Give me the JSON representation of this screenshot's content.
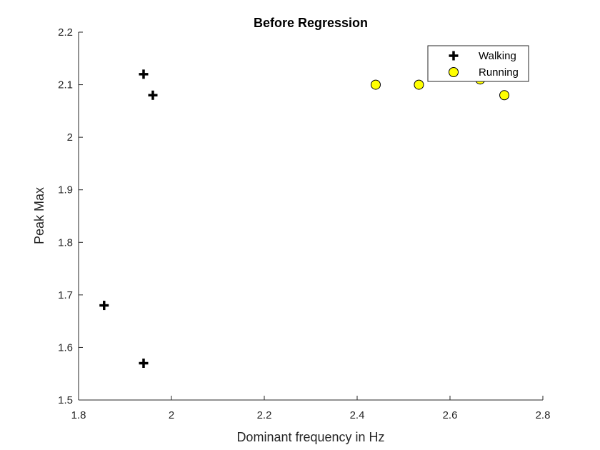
{
  "chart_data": {
    "type": "scatter",
    "title": "Before Regression",
    "xlabel": "Dominant frequency in Hz",
    "ylabel": "Peak Max",
    "xlim": [
      1.8,
      2.8
    ],
    "ylim": [
      1.5,
      2.2
    ],
    "xticks": [
      1.8,
      2,
      2.2,
      2.4,
      2.6,
      2.8
    ],
    "xtick_labels": [
      "1.8",
      "2",
      "2.2",
      "2.4",
      "2.6",
      "2.8"
    ],
    "yticks": [
      1.5,
      1.6,
      1.7,
      1.8,
      1.9,
      2,
      2.1,
      2.2
    ],
    "ytick_labels": [
      "1.5",
      "1.6",
      "1.7",
      "1.8",
      "1.9",
      "2",
      "2.1",
      "2.2"
    ],
    "grid": false,
    "legend_position": "top-right",
    "series": [
      {
        "name": "Walking",
        "marker": "plus",
        "color": "#000000",
        "points": [
          {
            "x": 1.94,
            "y": 2.12
          },
          {
            "x": 1.96,
            "y": 2.08
          },
          {
            "x": 1.855,
            "y": 1.68
          },
          {
            "x": 1.94,
            "y": 1.57
          }
        ]
      },
      {
        "name": "Running",
        "marker": "circle",
        "color": "#ffff00",
        "edge_color": "#000000",
        "points": [
          {
            "x": 2.44,
            "y": 2.1
          },
          {
            "x": 2.533,
            "y": 2.1
          },
          {
            "x": 2.665,
            "y": 2.11
          },
          {
            "x": 2.717,
            "y": 2.08
          }
        ]
      }
    ]
  }
}
